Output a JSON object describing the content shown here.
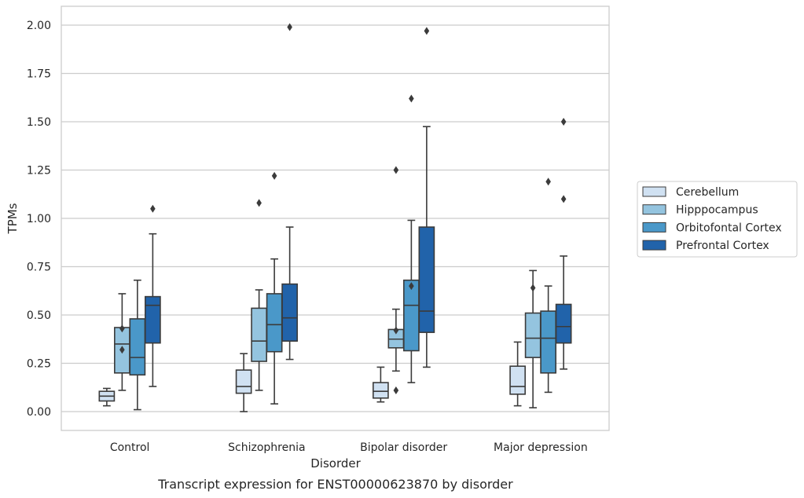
{
  "chart_data": {
    "type": "box",
    "title": "",
    "caption": "Transcript expression for ENST00000623870 by disorder",
    "xlabel": "Disorder",
    "ylabel": "TPMs",
    "ylim": [
      -0.1,
      2.1
    ],
    "yticks": [
      "0.00",
      "0.25",
      "0.50",
      "0.75",
      "1.00",
      "1.25",
      "1.50",
      "1.75",
      "2.00"
    ],
    "grid": "horizontal",
    "legend_position": "right",
    "categories": [
      "Control",
      "Schizophrenia",
      "Bipolar disorder",
      "Major depression"
    ],
    "series": [
      {
        "name": "Cerebellum",
        "color": "#d0e1f2",
        "boxes": [
          {
            "whislo": 0.03,
            "q1": 0.055,
            "med": 0.08,
            "q3": 0.105,
            "whishi": 0.12,
            "fliers": []
          },
          {
            "whislo": 0.0,
            "q1": 0.095,
            "med": 0.13,
            "q3": 0.215,
            "whishi": 0.3,
            "fliers": []
          },
          {
            "whislo": 0.05,
            "q1": 0.07,
            "med": 0.105,
            "q3": 0.15,
            "whishi": 0.23,
            "fliers": []
          },
          {
            "whislo": 0.03,
            "q1": 0.09,
            "med": 0.13,
            "q3": 0.235,
            "whishi": 0.36,
            "fliers": []
          }
        ]
      },
      {
        "name": "Hipppocampus",
        "color": "#94c4df",
        "boxes": [
          {
            "whislo": 0.11,
            "q1": 0.2,
            "med": 0.35,
            "q3": 0.435,
            "whishi": 0.61,
            "fliers": [
              0.32,
              0.43
            ]
          },
          {
            "whislo": 0.11,
            "q1": 0.26,
            "med": 0.365,
            "q3": 0.535,
            "whishi": 0.63,
            "fliers": [
              1.08
            ]
          },
          {
            "whislo": 0.21,
            "q1": 0.33,
            "med": 0.375,
            "q3": 0.425,
            "whishi": 0.53,
            "fliers": [
              0.42,
              0.11,
              1.25
            ]
          },
          {
            "whislo": 0.02,
            "q1": 0.28,
            "med": 0.38,
            "q3": 0.51,
            "whishi": 0.73,
            "fliers": [
              0.64
            ]
          }
        ]
      },
      {
        "name": "Orbitofontal Cortex",
        "color": "#4a98c9",
        "boxes": [
          {
            "whislo": 0.01,
            "q1": 0.19,
            "med": 0.28,
            "q3": 0.48,
            "whishi": 0.68,
            "fliers": []
          },
          {
            "whislo": 0.04,
            "q1": 0.31,
            "med": 0.45,
            "q3": 0.61,
            "whishi": 0.79,
            "fliers": [
              1.22
            ]
          },
          {
            "whislo": 0.15,
            "q1": 0.315,
            "med": 0.55,
            "q3": 0.68,
            "whishi": 0.99,
            "fliers": [
              0.65,
              1.62
            ]
          },
          {
            "whislo": 0.1,
            "q1": 0.2,
            "med": 0.38,
            "q3": 0.52,
            "whishi": 0.65,
            "fliers": [
              1.19
            ]
          }
        ]
      },
      {
        "name": "Prefrontal Cortex",
        "color": "#2163aa",
        "boxes": [
          {
            "whislo": 0.13,
            "q1": 0.355,
            "med": 0.55,
            "q3": 0.595,
            "whishi": 0.92,
            "fliers": [
              1.05
            ]
          },
          {
            "whislo": 0.27,
            "q1": 0.365,
            "med": 0.485,
            "q3": 0.66,
            "whishi": 0.955,
            "fliers": [
              1.99
            ]
          },
          {
            "whislo": 0.23,
            "q1": 0.41,
            "med": 0.52,
            "q3": 0.955,
            "whishi": 1.475,
            "fliers": [
              1.97
            ]
          },
          {
            "whislo": 0.22,
            "q1": 0.355,
            "med": 0.44,
            "q3": 0.555,
            "whishi": 0.805,
            "fliers": [
              1.1,
              1.5
            ]
          }
        ]
      }
    ]
  }
}
